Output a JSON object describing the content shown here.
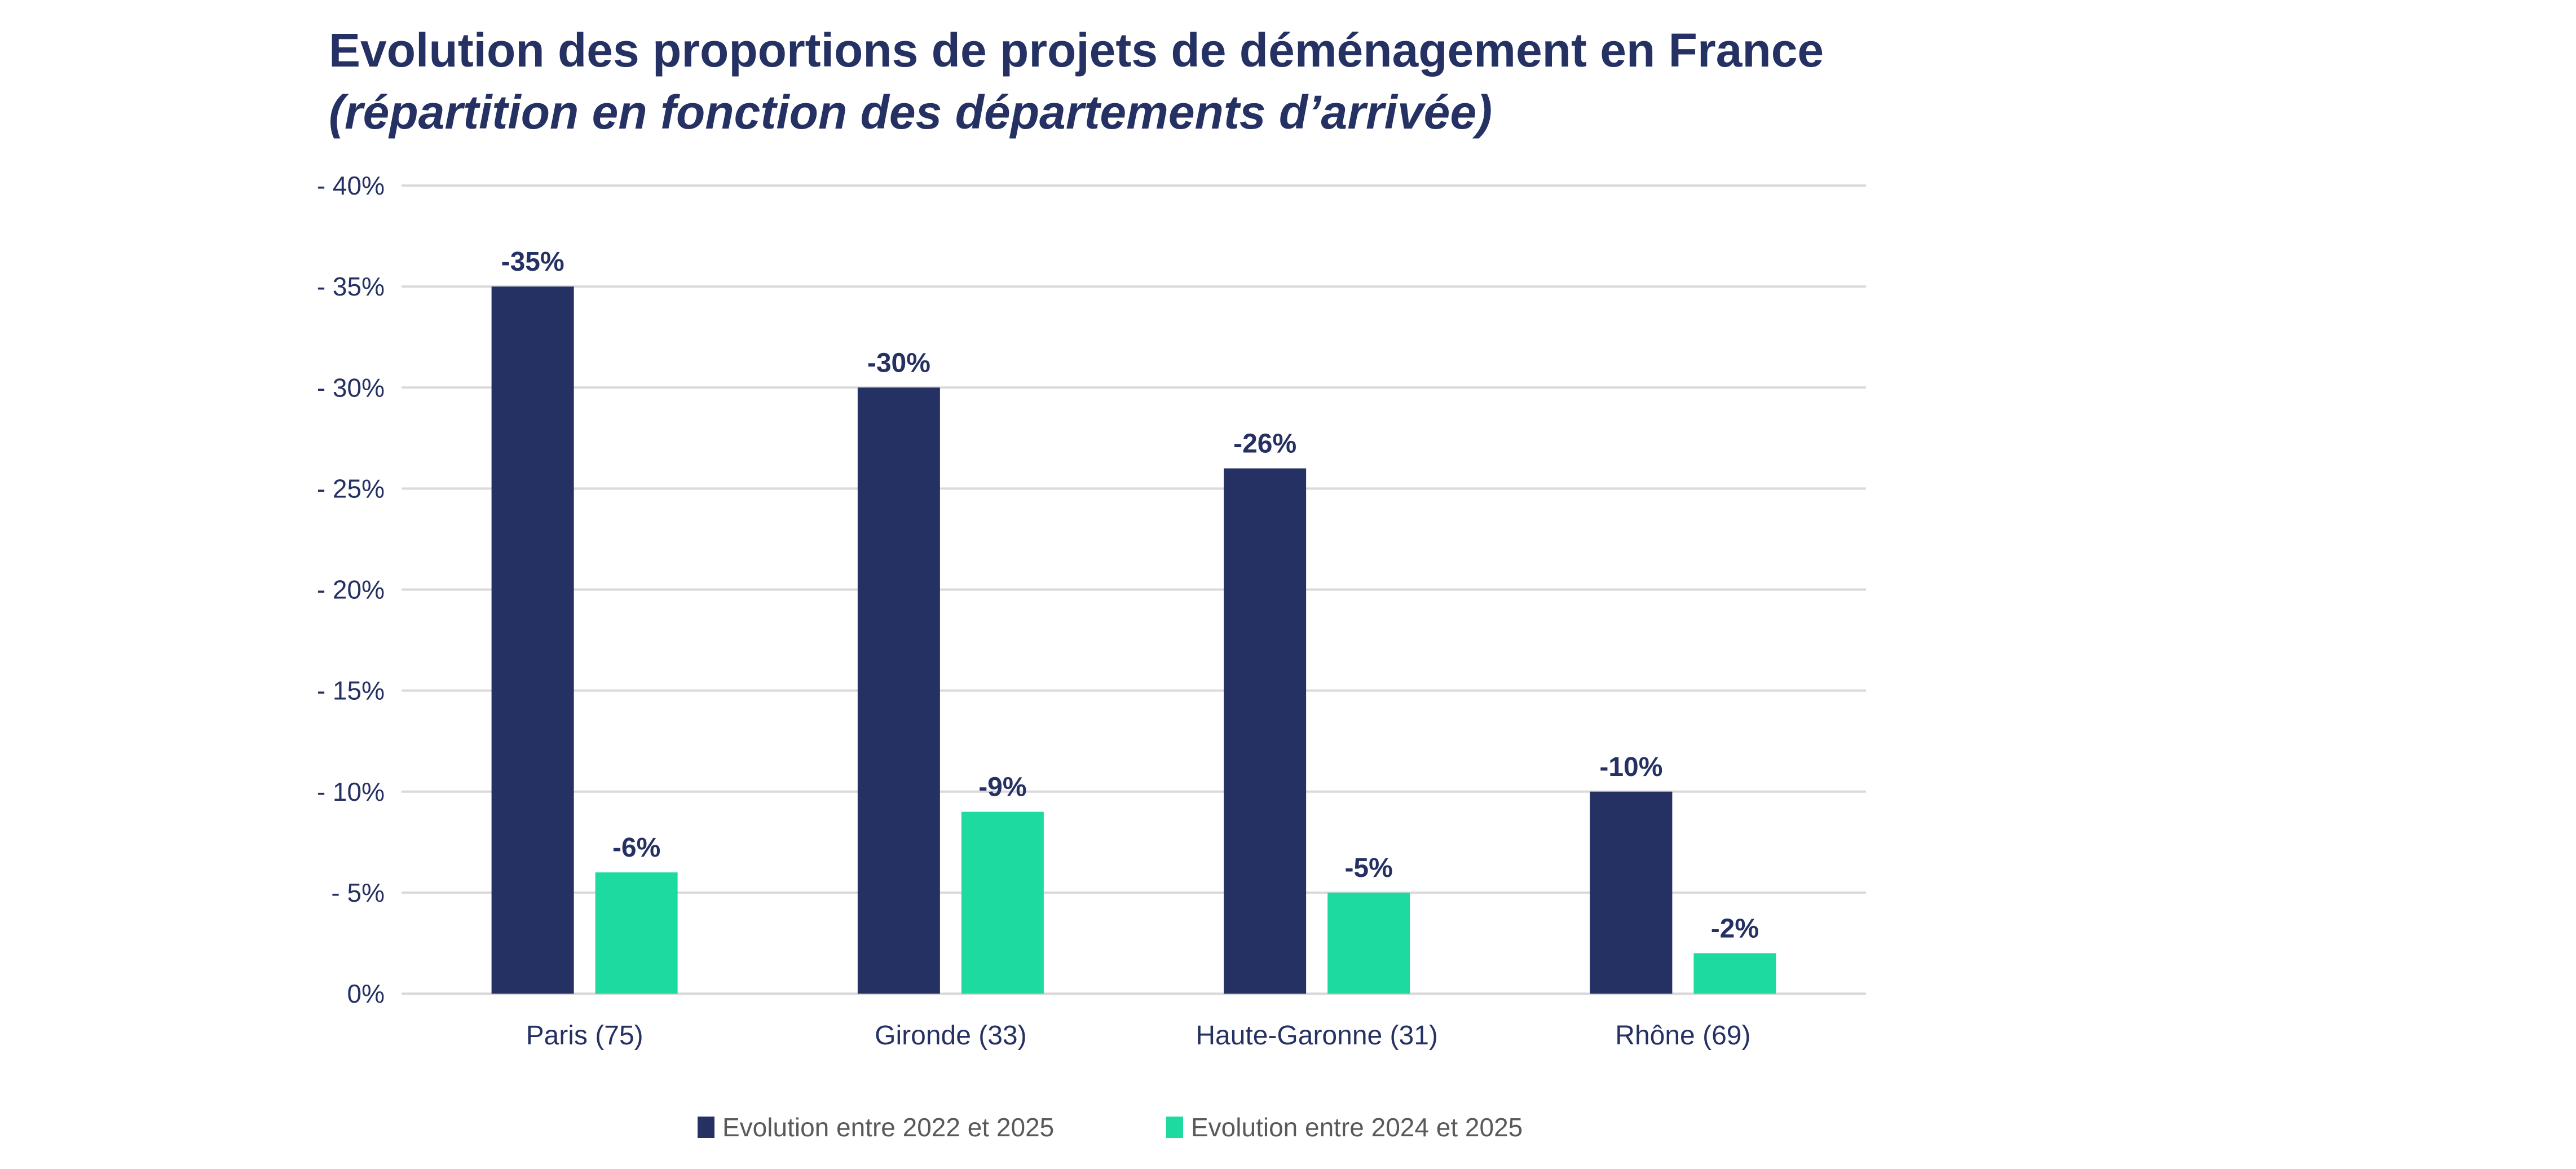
{
  "chart_data": {
    "type": "bar",
    "title": "Evolution des proportions de projets de déménagement en France",
    "subtitle": "(répartition en fonction des départements d’arrivée)",
    "xlabel": "",
    "ylabel": "",
    "categories": [
      "Paris (75)",
      "Gironde (33)",
      "Haute-Garonne (31)",
      "Rhône (69)"
    ],
    "series": [
      {
        "name": "Evolution entre 2022 et 2025",
        "values": [
          -35,
          -30,
          -26,
          -10
        ],
        "labels": [
          "-35%",
          "-30%",
          "-26%",
          "-10%"
        ],
        "color": "#253163"
      },
      {
        "name": "Evolution entre 2024 et 2025",
        "values": [
          -6,
          -9,
          -5,
          -2
        ],
        "labels": [
          "-6%",
          "-9%",
          "-5%",
          "-2%"
        ],
        "color": "#1ddba0"
      }
    ],
    "ylim": [
      0,
      -40
    ],
    "yticks": [
      0,
      -5,
      -10,
      -15,
      -20,
      -25,
      -30,
      -35,
      -40
    ],
    "ytick_labels": [
      "0%",
      "- 5%",
      "- 10%",
      "- 15%",
      "- 20%",
      "- 25%",
      "- 30%",
      "- 35%",
      "- 40%"
    ],
    "axis_inverted": true,
    "grid": true,
    "legend_position": "bottom"
  }
}
